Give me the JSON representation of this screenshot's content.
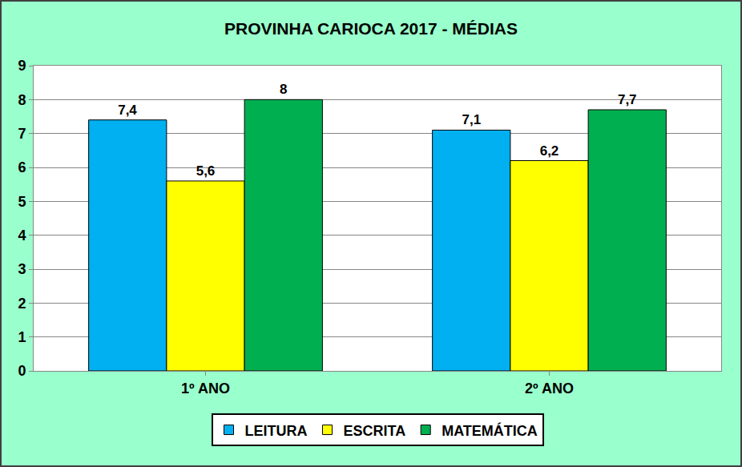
{
  "chart_data": {
    "type": "bar",
    "title": "PROVINHA CARIOCA 2017 - MÉDIAS",
    "categories": [
      "1º ANO",
      "2º ANO"
    ],
    "series": [
      {
        "name": "LEITURA",
        "color": "#00B0F0",
        "values": [
          7.4,
          7.1
        ],
        "value_labels": [
          "7,4",
          "7,1"
        ]
      },
      {
        "name": "ESCRITA",
        "color": "#FFFF00",
        "values": [
          5.6,
          6.2
        ],
        "value_labels": [
          "5,6",
          "6,2"
        ]
      },
      {
        "name": "MATEMÁTICA",
        "color": "#00B050",
        "values": [
          8,
          7.7
        ],
        "value_labels": [
          "8",
          "7,7"
        ]
      }
    ],
    "ylim": [
      0,
      9
    ],
    "yticks": [
      0,
      1,
      2,
      3,
      4,
      5,
      6,
      7,
      8,
      9
    ],
    "grid": true,
    "legend": "bottom",
    "data_labels": true
  }
}
